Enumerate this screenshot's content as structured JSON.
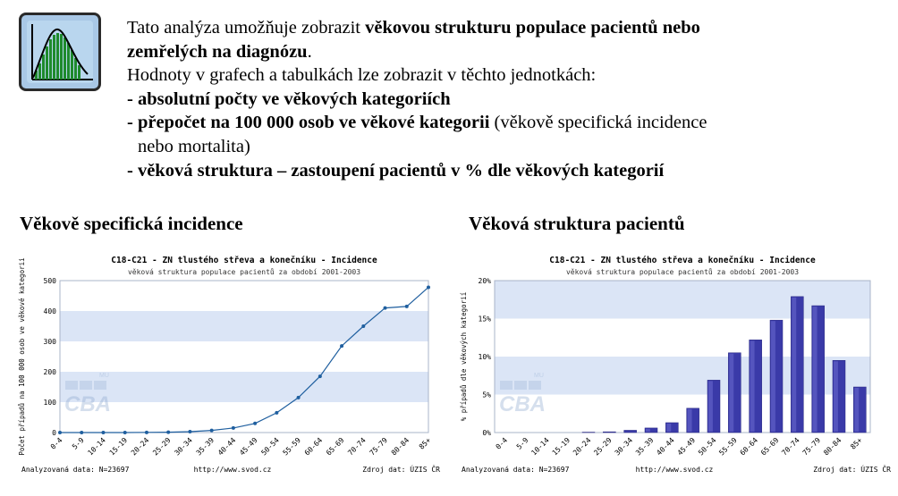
{
  "intro": {
    "line1_a": "Tato analýza umožňuje zobrazit ",
    "line1_b": "věkovou strukturu populace pacientů nebo",
    "line2_b": "zemřelých na diagnózu",
    "line2_c": ".",
    "line3": "Hodnoty v grafech a tabulkách lze zobrazit v těchto jednotkách:",
    "item1": "- absolutní počty ve věkových kategoriích",
    "item2_b": "- přepočet na 100 000 osob ve věkové kategorii",
    "item2_c": " (věkově specifická incidence",
    "item2_d": "nebo mortalita)",
    "item3": "- věková struktura – zastoupení pacientů v % dle věkových kategorií"
  },
  "sections": {
    "left_title": "Věkově specifická incidence",
    "right_title": "Věková struktura pacientů"
  },
  "chart_data": [
    {
      "type": "line",
      "title": "C18-C21 - ZN tlustého střeva a konečníku - Incidence",
      "subtitle": "věková struktura populace pacientů za období 2001-2003",
      "ylabel": "Počet případů na 100 000 osob ve věkové kategorii",
      "xlabel": "",
      "ylim": [
        0,
        500
      ],
      "yticks": [
        "0",
        "100",
        "200",
        "300",
        "400",
        "500"
      ],
      "yticks_val": [
        0,
        100,
        200,
        300,
        400,
        500
      ],
      "categories": [
        "0-4",
        "5-9",
        "10-14",
        "15-19",
        "20-24",
        "25-29",
        "30-34",
        "35-39",
        "40-44",
        "45-49",
        "50-54",
        "55-59",
        "60-64",
        "65-69",
        "70-74",
        "75-79",
        "80-84",
        "85+"
      ],
      "values": [
        0,
        0,
        0,
        0,
        0.5,
        1,
        3,
        7,
        15,
        30,
        65,
        115,
        185,
        285,
        350,
        410,
        415,
        478
      ],
      "grid": "alternating horizontal bands",
      "line_color": "#1f5f9f",
      "band_color": "#dbe5f6",
      "footer_left": "Analyzovaná data: N=23697",
      "footer_mid": "http://www.svod.cz",
      "footer_right": "Zdroj dat: ÚZIS ČR"
    },
    {
      "type": "bar",
      "title": "C18-C21 - ZN tlustého střeva a konečníku - Incidence",
      "subtitle": "věková struktura populace pacientů za období 2001-2003",
      "ylabel": "% případů dle věkových kategorií",
      "xlabel": "",
      "ylim": [
        0,
        20
      ],
      "yticks": [
        "0%",
        "5%",
        "10%",
        "15%",
        "20%"
      ],
      "yticks_val": [
        0,
        5,
        10,
        15,
        20
      ],
      "categories": [
        "0-4",
        "5-9",
        "10-14",
        "15-19",
        "20-24",
        "25-29",
        "30-34",
        "35-39",
        "40-44",
        "45-49",
        "50-54",
        "55-59",
        "60-64",
        "65-69",
        "70-74",
        "75-79",
        "80-84",
        "85+"
      ],
      "values": [
        0,
        0,
        0,
        0,
        0.05,
        0.1,
        0.3,
        0.6,
        1.3,
        3.2,
        6.9,
        10.5,
        12.2,
        14.8,
        17.9,
        16.7,
        9.5,
        6.0
      ],
      "grid": "alternating horizontal bands",
      "bar_color": "#3a3aa8",
      "band_color": "#dbe5f6",
      "footer_left": "Analyzovaná data: N=23697",
      "footer_mid": "http://www.svod.cz",
      "footer_right": "Zdroj dat: ÚZIS ČR"
    }
  ],
  "watermark": {
    "main": "CBA",
    "small": "MU"
  }
}
